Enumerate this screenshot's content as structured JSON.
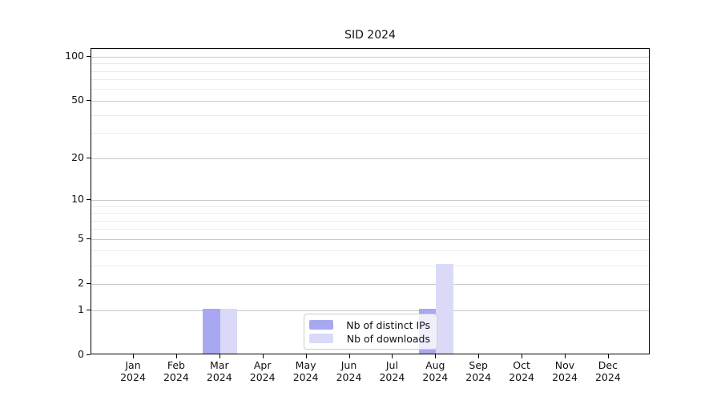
{
  "chart_data": {
    "type": "bar",
    "title": "SID 2024",
    "categories": [
      "Jan",
      "Feb",
      "Mar",
      "Apr",
      "May",
      "Jun",
      "Jul",
      "Aug",
      "Sep",
      "Oct",
      "Nov",
      "Dec"
    ],
    "category_year": "2024",
    "series": [
      {
        "name": "Nb of distinct IPs",
        "color": "#a8a8f2",
        "values": [
          0,
          0,
          1,
          0,
          0,
          0,
          0,
          1,
          0,
          0,
          0,
          0
        ]
      },
      {
        "name": "Nb of downloads",
        "color": "#dadaf8",
        "values": [
          0,
          0,
          1,
          0,
          0,
          0,
          0,
          3,
          0,
          0,
          0,
          0
        ]
      }
    ],
    "yticks": [
      0,
      1,
      2,
      5,
      10,
      20,
      50,
      100
    ],
    "minor_gridlines": [
      3,
      4,
      6,
      7,
      8,
      9,
      30,
      40,
      60,
      70,
      80,
      90
    ],
    "ylim": [
      0,
      113
    ],
    "yscale": "log10(1+x)",
    "xlabel": "",
    "ylabel": "",
    "grid": "horizontal",
    "legend_position": "lower-center",
    "colors": {
      "major_grid": "#c9c9c9",
      "minor_grid": "#ececec",
      "axis": "#000000",
      "background": "#ffffff"
    }
  }
}
